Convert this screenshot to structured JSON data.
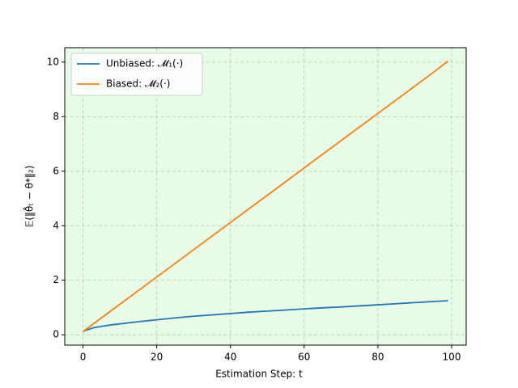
{
  "chart_data": {
    "type": "line",
    "xlabel": "Estimation Step: t",
    "ylabel": "𝔼(‖θ̂ₜ − θ*‖₂)",
    "x": [
      0,
      1,
      2,
      3,
      5,
      8,
      10,
      15,
      20,
      25,
      30,
      35,
      40,
      45,
      50,
      55,
      60,
      65,
      70,
      75,
      80,
      85,
      90,
      95,
      99
    ],
    "series": [
      {
        "name": "Unbiased: 𝓜₁(·)",
        "color": "#1f77b4",
        "values": [
          0.12,
          0.18,
          0.22,
          0.26,
          0.31,
          0.37,
          0.4,
          0.48,
          0.55,
          0.62,
          0.68,
          0.73,
          0.78,
          0.83,
          0.87,
          0.91,
          0.95,
          0.99,
          1.02,
          1.06,
          1.1,
          1.14,
          1.18,
          1.22,
          1.25
        ]
      },
      {
        "name": "Biased: 𝓜₂(·)",
        "color": "#ff7f0e",
        "values": [
          0.12,
          0.22,
          0.32,
          0.42,
          0.62,
          0.92,
          1.12,
          1.62,
          2.12,
          2.62,
          3.12,
          3.62,
          4.12,
          4.62,
          5.12,
          5.62,
          6.12,
          6.62,
          7.12,
          7.62,
          8.12,
          8.62,
          9.12,
          9.62,
          10.04
        ]
      }
    ],
    "xlim": [
      -4.95,
      103.95
    ],
    "xticks": [
      0,
      20,
      40,
      60,
      80,
      100
    ],
    "ylim": [
      -0.38,
      10.53
    ],
    "yticks": [
      0,
      2,
      4,
      6,
      8,
      10
    ],
    "grid": true,
    "legend": "upper-left",
    "background": "#e8fbe8"
  }
}
